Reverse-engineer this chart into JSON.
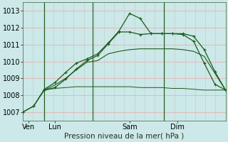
{
  "background_color": "#cce8e8",
  "grid_color_h": "#e8b0b0",
  "grid_color_v": "#c0c8c8",
  "line_color": "#1a5c1a",
  "title": "Pression niveau de la mer( hPa )",
  "tick_fontsize": 7,
  "title_fontsize": 7.5,
  "ylim": [
    1006.5,
    1013.5
  ],
  "yticks": [
    1007,
    1008,
    1009,
    1010,
    1011,
    1012,
    1013
  ],
  "xlim": [
    0,
    19
  ],
  "xtick_positions": [
    0.5,
    3.0,
    10.0,
    14.5
  ],
  "xtick_labels": [
    "Ven",
    "Lun",
    "Sam",
    "Dim"
  ],
  "vline_positions": [
    2.0,
    6.5,
    13.2
  ],
  "line1_x": [
    0,
    1,
    2,
    3,
    4,
    5,
    6,
    7,
    8,
    9,
    10,
    11,
    12,
    13,
    14,
    15,
    16,
    17,
    18,
    19
  ],
  "line1": [
    1007.0,
    1007.35,
    1008.3,
    1008.45,
    1008.95,
    1009.55,
    1010.05,
    1010.35,
    1011.05,
    1011.75,
    1011.75,
    1011.6,
    1011.65,
    1011.65,
    1011.65,
    1011.65,
    1011.5,
    1010.7,
    1009.4,
    1008.3
  ],
  "line2_x": [
    2,
    3,
    4,
    5,
    6,
    7,
    8,
    9,
    10,
    11,
    12,
    13,
    14,
    15,
    16,
    17,
    18,
    19
  ],
  "line2": [
    1008.3,
    1008.4,
    1008.45,
    1008.5,
    1008.5,
    1008.5,
    1008.5,
    1008.5,
    1008.5,
    1008.45,
    1008.45,
    1008.45,
    1008.4,
    1008.4,
    1008.35,
    1008.3,
    1008.3,
    1008.3
  ],
  "line3_x": [
    2,
    3,
    4,
    5,
    6,
    7,
    8,
    9,
    10,
    11,
    12,
    13,
    14,
    15,
    16,
    17,
    18,
    19
  ],
  "line3": [
    1008.3,
    1008.6,
    1009.0,
    1009.5,
    1009.95,
    1010.05,
    1010.45,
    1010.6,
    1010.7,
    1010.75,
    1010.75,
    1010.75,
    1010.75,
    1010.7,
    1010.6,
    1010.3,
    1009.3,
    1008.3
  ],
  "line4_x": [
    0,
    1,
    2,
    3,
    4,
    5,
    6,
    7,
    8,
    9,
    10,
    11,
    12,
    13,
    14,
    15,
    16,
    17,
    18,
    19
  ],
  "line4": [
    1007.0,
    1007.35,
    1008.35,
    1008.75,
    1009.35,
    1009.9,
    1010.15,
    1010.45,
    1011.1,
    1011.8,
    1012.85,
    1012.55,
    1011.65,
    1011.65,
    1011.65,
    1011.6,
    1011.2,
    1009.9,
    1008.65,
    1008.3
  ]
}
